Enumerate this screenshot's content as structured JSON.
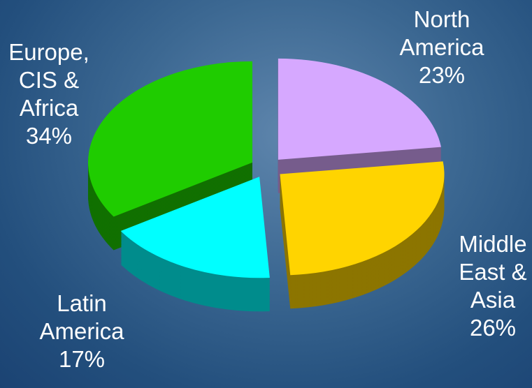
{
  "chart_data": {
    "type": "pie",
    "categories": [
      "North America",
      "Middle East & Asia",
      "Latin America",
      "Europe, CIS & Africa"
    ],
    "values": [
      23,
      26,
      17,
      34
    ],
    "value_labels": [
      "23%",
      "26%",
      "17%",
      "34%"
    ],
    "colors": [
      "#d6a8ff",
      "#ffd400",
      "#00ffff",
      "#1fcc00"
    ]
  }
}
